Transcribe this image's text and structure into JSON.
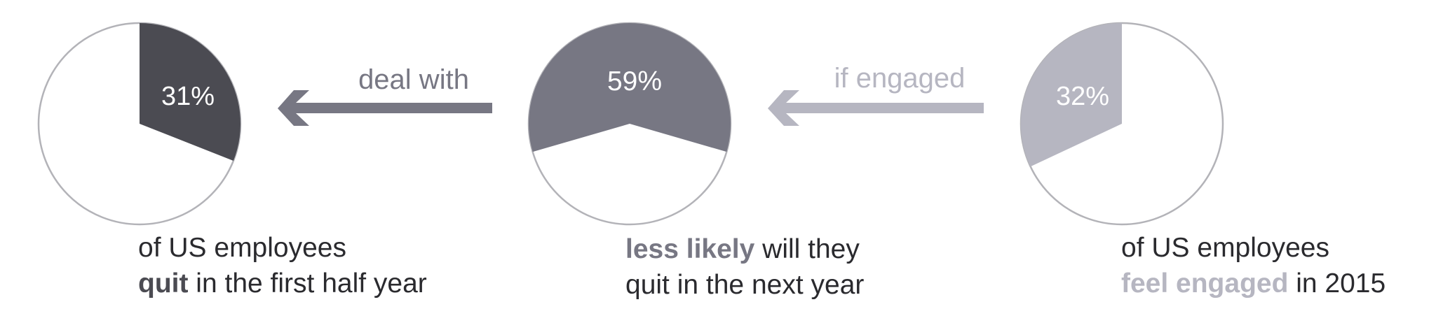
{
  "colors": {
    "dark": "#4b4b52",
    "mid": "#777783",
    "light": "#b6b6c1",
    "outline": "#b3b3b8",
    "text": "#2a2a2e"
  },
  "chart_data": [
    {
      "type": "pie",
      "values": [
        31,
        69
      ],
      "highlight_index": 0,
      "data_label": "31%",
      "color": "#4b4b52",
      "caption": {
        "line1": "of US employees",
        "line2_bold": "quit",
        "line2_rest": " in the first half year",
        "bold_color": "#4b4b52"
      }
    },
    {
      "type": "pie",
      "values": [
        59,
        41
      ],
      "highlight_index": 0,
      "data_label": "59%",
      "color": "#777783",
      "caption": {
        "line1_bold": "less likely",
        "line1_rest": " will they",
        "line2": "quit in the next year",
        "bold_color": "#777783"
      }
    },
    {
      "type": "pie",
      "values": [
        32,
        68
      ],
      "highlight_index": 0,
      "data_label": "32%",
      "color": "#b6b6c1",
      "caption": {
        "line1": "of US employees",
        "line2_bold": "feel engaged",
        "line2_rest": " in 2015",
        "bold_color": "#b6b6c1"
      }
    }
  ],
  "connectors": [
    {
      "label": "deal with",
      "color": "#777783",
      "direction": "left"
    },
    {
      "label": "if engaged",
      "color": "#b6b6c1",
      "direction": "left"
    }
  ]
}
